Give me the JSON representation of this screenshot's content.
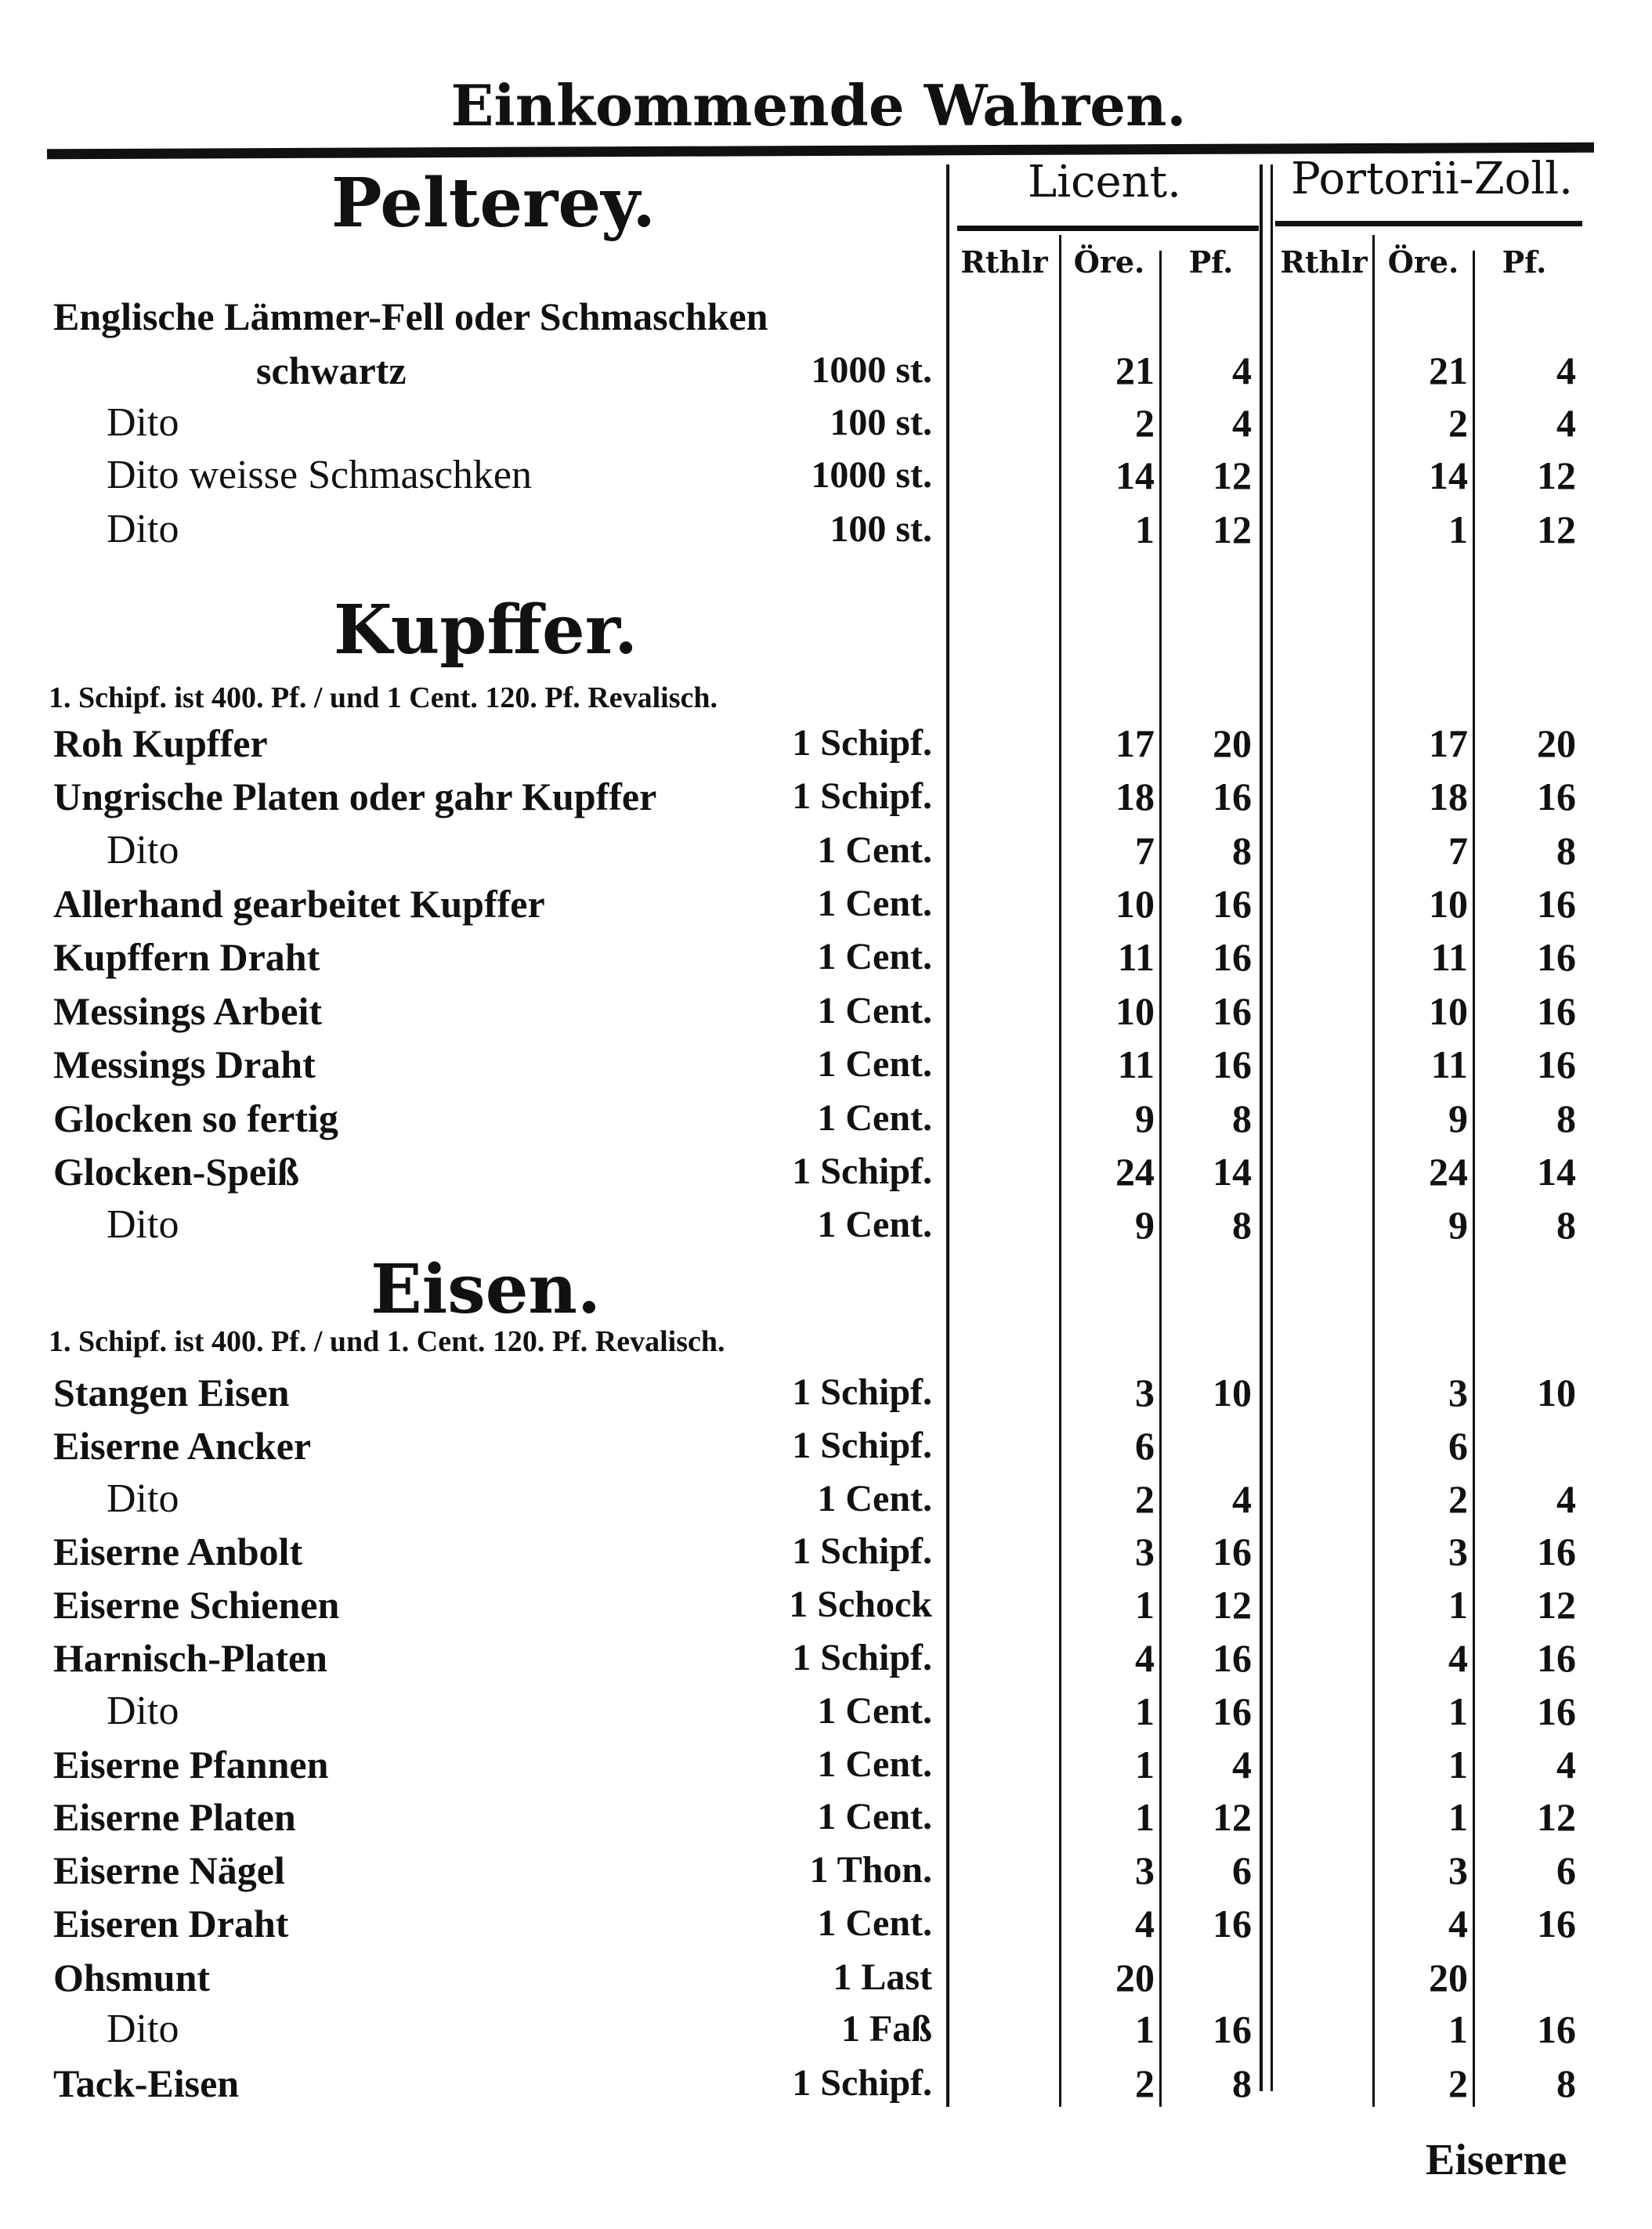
{
  "page_title": "Einkommende Wahren.",
  "columns": {
    "licent": "Licent.",
    "portorii": "Portorii-Zoll.",
    "sub": [
      "Rthlr",
      "Öre.",
      "Pf."
    ]
  },
  "sections": [
    {
      "heading": "Pelterey.",
      "note": "",
      "rows": [
        {
          "name": "Englische Lämmer-Fell oder Schmaschken",
          "qty": "",
          "licent": [
            "",
            "",
            ""
          ],
          "portorii": [
            "",
            "",
            ""
          ]
        },
        {
          "name": "schwartz",
          "indent": "deep",
          "qty": "1000 st.",
          "licent": [
            "",
            "21",
            "4"
          ],
          "portorii": [
            "",
            "21",
            "4"
          ]
        },
        {
          "name": "Dito",
          "indent": "dito",
          "qty": "100 st.",
          "licent": [
            "",
            "2",
            "4"
          ],
          "portorii": [
            "",
            "2",
            "4"
          ]
        },
        {
          "name": "Dito weisse Schmaschken",
          "indent": "dito",
          "qty": "1000 st.",
          "licent": [
            "",
            "14",
            "12"
          ],
          "portorii": [
            "",
            "14",
            "12"
          ]
        },
        {
          "name": "Dito",
          "indent": "dito",
          "qty": "100 st.",
          "licent": [
            "",
            "1",
            "12"
          ],
          "portorii": [
            "",
            "1",
            "12"
          ]
        }
      ]
    },
    {
      "heading": "Kupffer.",
      "note": "1. Schipf. ist 400. Pf. / und 1 Cent. 120. Pf. Revalisch.",
      "rows": [
        {
          "name": "Roh Kupffer",
          "qty": "1 Schipf.",
          "licent": [
            "",
            "17",
            "20"
          ],
          "portorii": [
            "",
            "17",
            "20"
          ]
        },
        {
          "name": "Ungrische Platen oder gahr Kupffer",
          "qty": "1 Schipf.",
          "licent": [
            "",
            "18",
            "16"
          ],
          "portorii": [
            "",
            "18",
            "16"
          ]
        },
        {
          "name": "Dito",
          "indent": "dito",
          "qty": "1 Cent.",
          "licent": [
            "",
            "7",
            "8"
          ],
          "portorii": [
            "",
            "7",
            "8"
          ]
        },
        {
          "name": "Allerhand gearbeitet Kupffer",
          "qty": "1 Cent.",
          "licent": [
            "",
            "10",
            "16"
          ],
          "portorii": [
            "",
            "10",
            "16"
          ]
        },
        {
          "name": "Kupffern Draht",
          "qty": "1 Cent.",
          "licent": [
            "",
            "11",
            "16"
          ],
          "portorii": [
            "",
            "11",
            "16"
          ]
        },
        {
          "name": "Messings Arbeit",
          "qty": "1 Cent.",
          "licent": [
            "",
            "10",
            "16"
          ],
          "portorii": [
            "",
            "10",
            "16"
          ]
        },
        {
          "name": "Messings Draht",
          "qty": "1 Cent.",
          "licent": [
            "",
            "11",
            "16"
          ],
          "portorii": [
            "",
            "11",
            "16"
          ]
        },
        {
          "name": "Glocken so fertig",
          "qty": "1 Cent.",
          "licent": [
            "",
            "9",
            "8"
          ],
          "portorii": [
            "",
            "9",
            "8"
          ]
        },
        {
          "name": "Glocken-Speiß",
          "qty": "1 Schipf.",
          "licent": [
            "",
            "24",
            "14"
          ],
          "portorii": [
            "",
            "24",
            "14"
          ]
        },
        {
          "name": "Dito",
          "indent": "dito",
          "qty": "1 Cent.",
          "licent": [
            "",
            "9",
            "8"
          ],
          "portorii": [
            "",
            "9",
            "8"
          ]
        }
      ]
    },
    {
      "heading": "Eisen.",
      "note": "1. Schipf. ist 400. Pf. / und 1. Cent. 120. Pf. Revalisch.",
      "rows": [
        {
          "name": "Stangen Eisen",
          "qty": "1 Schipf.",
          "licent": [
            "",
            "3",
            "10"
          ],
          "portorii": [
            "",
            "3",
            "10"
          ]
        },
        {
          "name": "Eiserne Ancker",
          "qty": "1 Schipf.",
          "licent": [
            "",
            "6",
            ""
          ],
          "portorii": [
            "",
            "6",
            ""
          ]
        },
        {
          "name": "Dito",
          "indent": "dito",
          "qty": "1 Cent.",
          "licent": [
            "",
            "2",
            "4"
          ],
          "portorii": [
            "",
            "2",
            "4"
          ]
        },
        {
          "name": "Eiserne Anbolt",
          "qty": "1 Schipf.",
          "licent": [
            "",
            "3",
            "16"
          ],
          "portorii": [
            "",
            "3",
            "16"
          ]
        },
        {
          "name": "Eiserne Schienen",
          "qty": "1 Schock",
          "licent": [
            "",
            "1",
            "12"
          ],
          "portorii": [
            "",
            "1",
            "12"
          ]
        },
        {
          "name": "Harnisch-Platen",
          "qty": "1 Schipf.",
          "licent": [
            "",
            "4",
            "16"
          ],
          "portorii": [
            "",
            "4",
            "16"
          ]
        },
        {
          "name": "Dito",
          "indent": "dito",
          "qty": "1 Cent.",
          "licent": [
            "",
            "1",
            "16"
          ],
          "portorii": [
            "",
            "1",
            "16"
          ]
        },
        {
          "name": "Eiserne Pfannen",
          "qty": "1 Cent.",
          "licent": [
            "",
            "1",
            "4"
          ],
          "portorii": [
            "",
            "1",
            "4"
          ]
        },
        {
          "name": "Eiserne Platen",
          "qty": "1 Cent.",
          "licent": [
            "",
            "1",
            "12"
          ],
          "portorii": [
            "",
            "1",
            "12"
          ]
        },
        {
          "name": "Eiserne Nägel",
          "qty": "1 Thon.",
          "licent": [
            "",
            "3",
            "6"
          ],
          "portorii": [
            "",
            "3",
            "6"
          ]
        },
        {
          "name": "Eiseren Draht",
          "qty": "1 Cent.",
          "licent": [
            "",
            "4",
            "16"
          ],
          "portorii": [
            "",
            "4",
            "16"
          ]
        },
        {
          "name": "Ohsmunt",
          "qty": "1 Last",
          "licent": [
            "",
            "20",
            ""
          ],
          "portorii": [
            "",
            "20",
            ""
          ]
        },
        {
          "name": "Dito",
          "indent": "dito",
          "qty": "1 Faß",
          "licent": [
            "",
            "1",
            "16"
          ],
          "portorii": [
            "",
            "1",
            "16"
          ]
        },
        {
          "name": "Tack-Eisen",
          "qty": "1 Schipf.",
          "licent": [
            "",
            "2",
            "8"
          ],
          "portorii": [
            "",
            "2",
            "8"
          ]
        }
      ]
    }
  ],
  "catchword": "Eiserne"
}
